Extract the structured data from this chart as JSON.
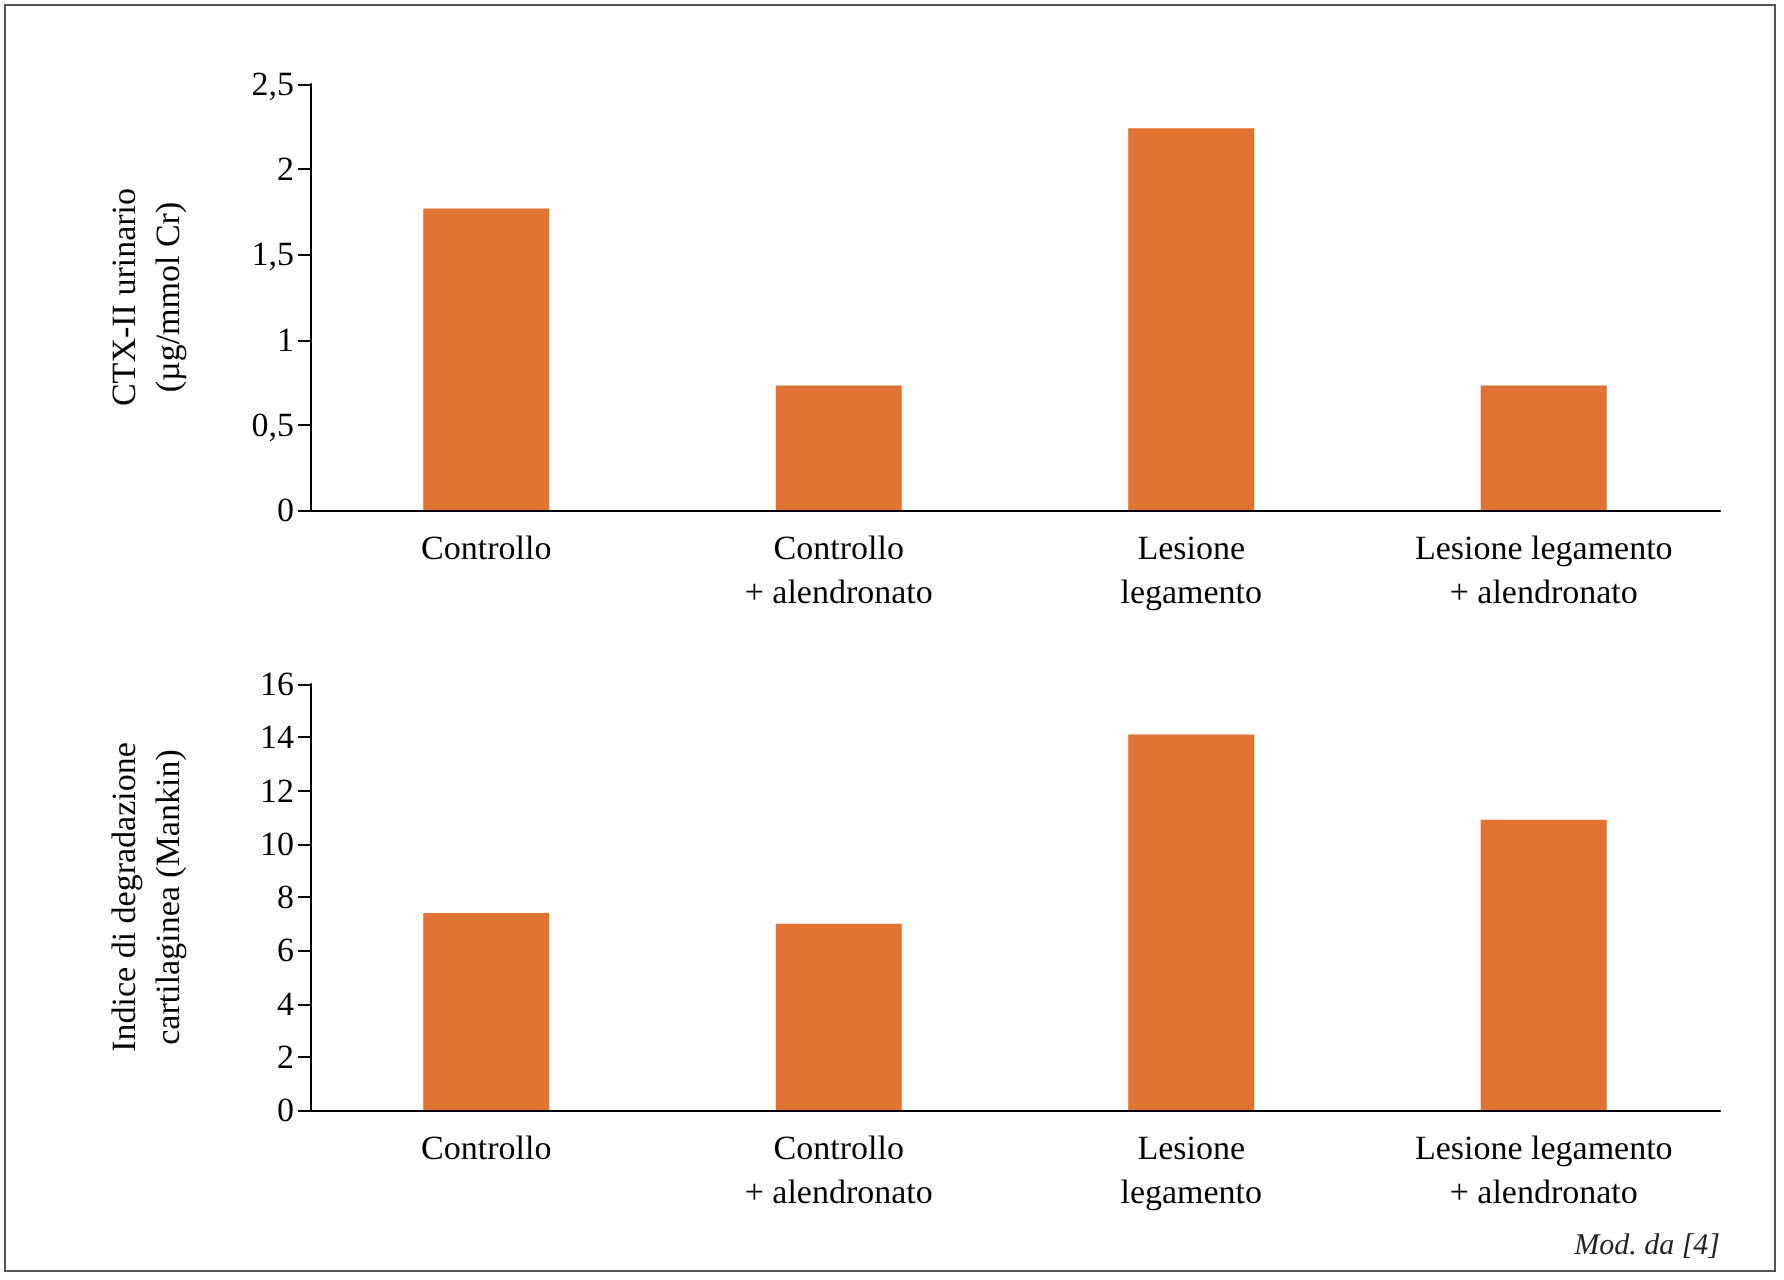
{
  "chart_data": [
    {
      "type": "bar",
      "ylabel": "CTX-II urinario\n(µg/mmol Cr)",
      "categories": [
        "Controllo",
        "Controllo\n+ alendronato",
        "Lesione\nlegamento",
        "Lesione legamento\n+ alendronato"
      ],
      "series": [
        {
          "color": "#e07232",
          "values": [
            1.77,
            0.73,
            2.24,
            0.73
          ]
        }
      ],
      "ylim": [
        0,
        2.5
      ],
      "yticks": [
        0,
        {
          "value": 0.5,
          "label": "0,5"
        },
        1,
        {
          "value": 1.5,
          "label": "1,5"
        },
        2,
        {
          "value": 2.5,
          "label": "2,5"
        }
      ],
      "grid": false
    },
    {
      "type": "bar",
      "ylabel": "Indice di degradazione\ncartilaginea (Mankin)",
      "categories": [
        "Controllo",
        "Controllo\n+ alendronato",
        "Lesione\nlegamento",
        "Lesione legamento\n+ alendronato"
      ],
      "series": [
        {
          "color": "#e07232",
          "values": [
            7.4,
            7.0,
            14.1,
            10.9
          ]
        }
      ],
      "ylim": [
        0,
        16
      ],
      "yticks": [
        0,
        2,
        4,
        6,
        8,
        10,
        12,
        14,
        16
      ],
      "grid": false,
      "annotations": [
        "Mod. da [4]"
      ]
    }
  ]
}
